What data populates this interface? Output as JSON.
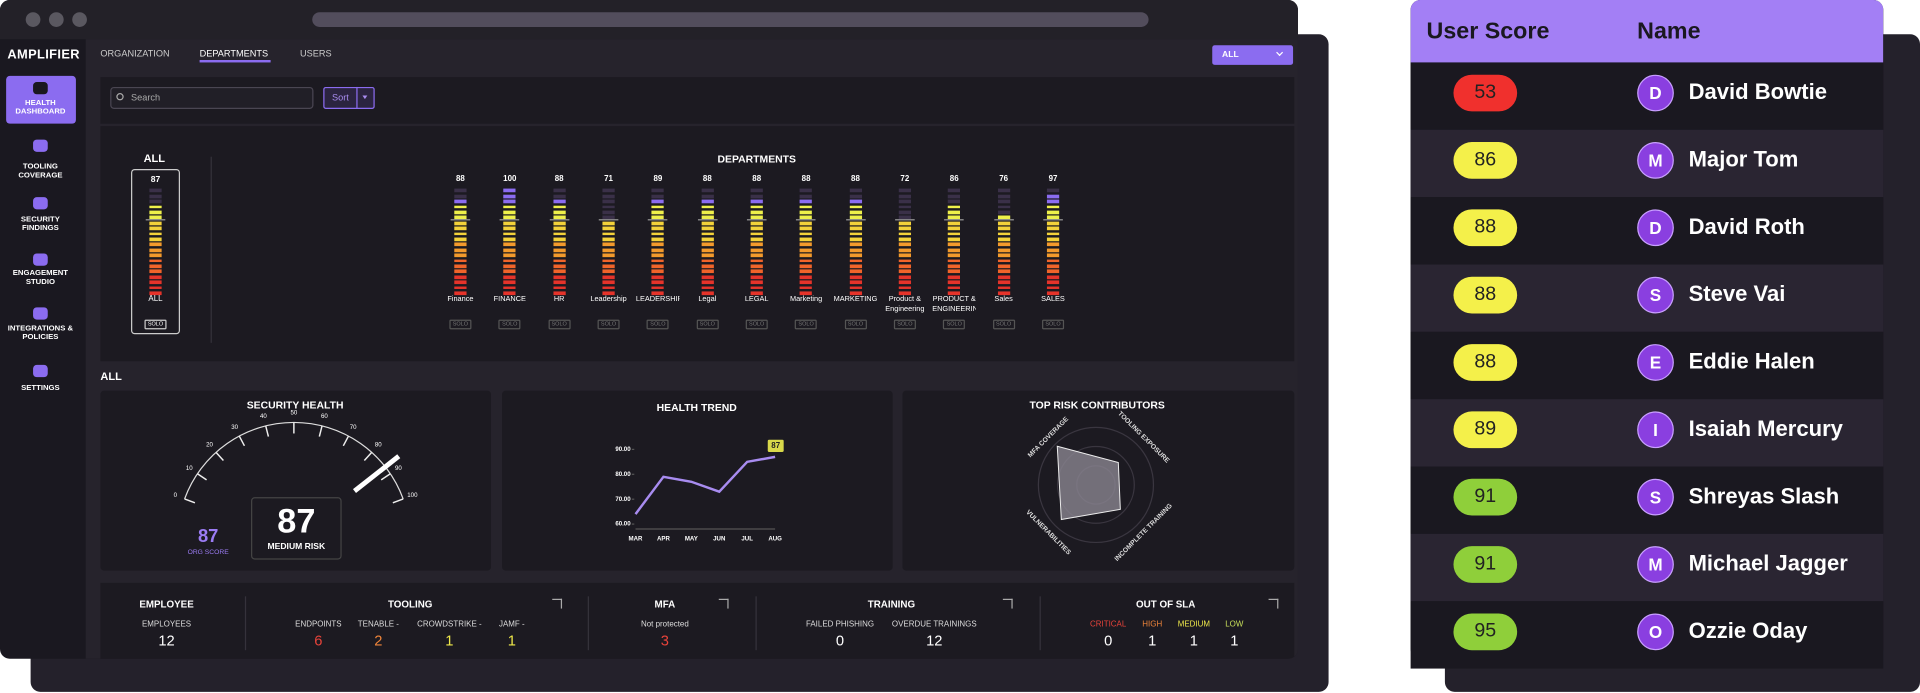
{
  "app": {
    "logo": "AMPLIFIER",
    "nav": [
      "HEALTH DASHBOARD",
      "TOOLING COVERAGE",
      "SECURITY FINDINGS",
      "ENGAGEMENT STUDIO",
      "INTEGRATIONS & POLICIES",
      "SETTINGS"
    ],
    "tabs": [
      "ORGANIZATION",
      "DEPARTMENTS",
      "USERS"
    ],
    "filter": "ALL",
    "search_placeholder": "Search",
    "sort": "Sort"
  },
  "overview": {
    "title": "ALL",
    "score": 87,
    "label": "ALL",
    "button": "SOLO"
  },
  "departments": {
    "title": "DEPARTMENTS",
    "button": "SOLO",
    "items": [
      {
        "name": "Finance",
        "score": 88
      },
      {
        "name": "FINANCE",
        "score": 100
      },
      {
        "name": "HR",
        "score": 88
      },
      {
        "name": "Leadership",
        "score": 71
      },
      {
        "name": "LEADERSHIP",
        "score": 89
      },
      {
        "name": "Legal",
        "score": 88
      },
      {
        "name": "LEGAL",
        "score": 88
      },
      {
        "name": "Marketing",
        "score": 88
      },
      {
        "name": "MARKETING",
        "score": 88
      },
      {
        "name": "Product & Engineering",
        "score": 72
      },
      {
        "name": "PRODUCT & ENGINEERING",
        "score": 86
      },
      {
        "name": "Sales",
        "score": 76
      },
      {
        "name": "SALES",
        "score": 97
      }
    ]
  },
  "section_title": "ALL",
  "security_health": {
    "title": "SECURITY HEALTH",
    "score": 87,
    "risk": "MEDIUM RISK",
    "org_score": 87,
    "org_label": "ORG SCORE",
    "gauge_ticks": [
      0,
      10,
      20,
      30,
      40,
      50,
      60,
      70,
      80,
      90,
      100
    ]
  },
  "health_trend": {
    "title": "HEALTH TREND",
    "categories": [
      "MAR",
      "APR",
      "MAY",
      "JUN",
      "JUL",
      "AUG"
    ],
    "values": [
      64,
      79,
      77,
      73,
      85,
      87
    ],
    "ylim": [
      60,
      90
    ],
    "yticks": [
      {
        "value": 60,
        "label": "60.00"
      },
      {
        "value": 70,
        "label": "70.00"
      },
      {
        "value": 80,
        "label": "80.00"
      },
      {
        "value": 90,
        "label": "90.00"
      }
    ]
  },
  "top_risk": {
    "title": "TOP RISK CONTRIBUTORS",
    "axes": [
      "MFA COVERAGE",
      "TOOLING EXPOSURE",
      "INCOMPLETE TRAINING",
      "VULNERABILITIES"
    ],
    "values": [
      95,
      55,
      60,
      85
    ],
    "rlim": [
      0,
      100
    ]
  },
  "metrics": [
    {
      "title": "EMPLOYEE",
      "items": [
        {
          "label": "EMPLOYEES",
          "value": 12
        }
      ]
    },
    {
      "title": "TOOLING",
      "items": [
        {
          "label": "ENDPOINTS",
          "value": 6,
          "color": "#e8433a"
        },
        {
          "label": "TENABLE -",
          "value": 2,
          "color": "#f0853a"
        },
        {
          "label": "CROWDSTRIKE -",
          "value": 1,
          "color": "#eee84a"
        },
        {
          "label": "JAMF -",
          "value": 1,
          "color": "#eee84a"
        }
      ]
    },
    {
      "title": "MFA",
      "items": [
        {
          "label": "Not protected",
          "value": 3,
          "color": "#e8433a"
        }
      ]
    },
    {
      "title": "TRAINING",
      "items": [
        {
          "label": "FAILED PHISHING",
          "value": 0
        },
        {
          "label": "OVERDUE TRAININGS",
          "value": 12
        }
      ]
    },
    {
      "title": "OUT OF SLA",
      "items": [
        {
          "label": "CRITICAL",
          "value": 0,
          "label_color": "#e8433a"
        },
        {
          "label": "HIGH",
          "value": 1,
          "label_color": "#f0853a"
        },
        {
          "label": "MEDIUM",
          "value": 1,
          "label_color": "#eee84a"
        },
        {
          "label": "LOW",
          "value": 1,
          "label_color": "#c8e05a"
        }
      ]
    }
  ],
  "users_table": {
    "headers": [
      "User Score",
      "Name"
    ],
    "rows": [
      {
        "score": 53,
        "initial": "D",
        "name": "David Bowtie"
      },
      {
        "score": 86,
        "initial": "M",
        "name": "Major Tom"
      },
      {
        "score": 88,
        "initial": "D",
        "name": "David Roth"
      },
      {
        "score": 88,
        "initial": "S",
        "name": "Steve Vai"
      },
      {
        "score": 88,
        "initial": "E",
        "name": "Eddie Halen"
      },
      {
        "score": 89,
        "initial": "I",
        "name": "Isaiah Mercury"
      },
      {
        "score": 91,
        "initial": "S",
        "name": "Shreyas Slash"
      },
      {
        "score": 91,
        "initial": "M",
        "name": "Michael Jagger"
      },
      {
        "score": 95,
        "initial": "O",
        "name": "Ozzie Oday"
      }
    ]
  }
}
